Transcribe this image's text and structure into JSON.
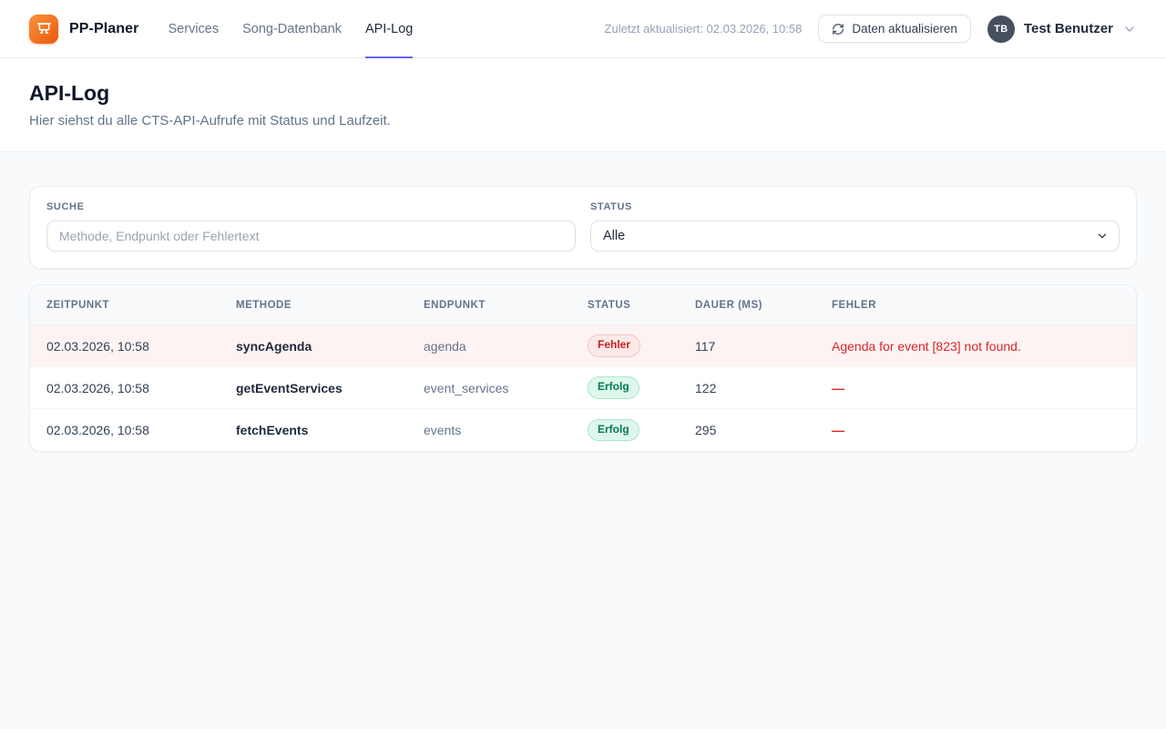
{
  "header": {
    "brand": "PP-Planer",
    "nav": [
      {
        "label": "Services",
        "active": false
      },
      {
        "label": "Song-Datenbank",
        "active": false
      },
      {
        "label": "API-Log",
        "active": true
      }
    ],
    "last_updated": "Zuletzt aktualisiert: 02.03.2026, 10:58",
    "refresh_button": "Daten aktualisieren",
    "user": {
      "initials": "TB",
      "name": "Test Benutzer"
    }
  },
  "page": {
    "title": "API-Log",
    "subtitle": "Hier siehst du alle CTS-API-Aufrufe mit Status und Laufzeit."
  },
  "filters": {
    "search_label": "SUCHE",
    "search_placeholder": "Methode, Endpunkt oder Fehlertext",
    "search_value": "",
    "status_label": "STATUS",
    "status_value": "Alle"
  },
  "table": {
    "columns": [
      "ZEITPUNKT",
      "METHODE",
      "ENDPUNKT",
      "STATUS",
      "DAUER (MS)",
      "FEHLER"
    ],
    "rows": [
      {
        "zeitpunkt": "02.03.2026, 10:58",
        "methode": "syncAgenda",
        "endpunkt": "agenda",
        "status": "Fehler",
        "status_type": "error",
        "dauer": "117",
        "fehler": "Agenda for event [823] not found."
      },
      {
        "zeitpunkt": "02.03.2026, 10:58",
        "methode": "getEventServices",
        "endpunkt": "event_services",
        "status": "Erfolg",
        "status_type": "success",
        "dauer": "122",
        "fehler": "—"
      },
      {
        "zeitpunkt": "02.03.2026, 10:58",
        "methode": "fetchEvents",
        "endpunkt": "events",
        "status": "Erfolg",
        "status_type": "success",
        "dauer": "295",
        "fehler": "—"
      }
    ]
  },
  "icons": {
    "logo": "presentation-board-icon",
    "refresh": "refresh-icon",
    "user_chevron": "chevron-down-icon",
    "select_chevron": "chevron-down-icon"
  },
  "colors": {
    "accent": "#6366f1",
    "brand_orange_1": "#fb923c",
    "brand_orange_2": "#ea580c",
    "error_text": "#dc2626",
    "dash_red": "#e02424",
    "error_row_bg": "#fdf3f3",
    "error_badge_bg": "#fde8e8",
    "error_badge_text": "#c81e1e",
    "success_badge_bg": "#def7ec",
    "success_badge_text": "#057a55"
  }
}
